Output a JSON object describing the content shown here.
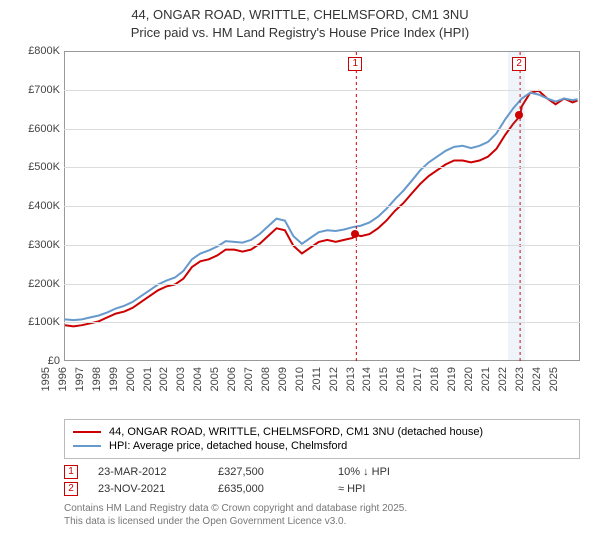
{
  "title_line1": "44, ONGAR ROAD, WRITTLE, CHELMSFORD, CM1 3NU",
  "title_line2": "Price paid vs. HM Land Registry's House Price Index (HPI)",
  "chart": {
    "type": "line",
    "background_color": "#ffffff",
    "grid_color": "#dcdcdc",
    "x": {
      "min": 1995,
      "max": 2025.5,
      "ticks": [
        1995,
        1996,
        1997,
        1998,
        1999,
        2000,
        2001,
        2002,
        2003,
        2004,
        2005,
        2006,
        2007,
        2008,
        2009,
        2010,
        2011,
        2012,
        2013,
        2014,
        2015,
        2016,
        2017,
        2018,
        2019,
        2020,
        2021,
        2022,
        2023,
        2024,
        2025
      ],
      "label_fontsize": 11
    },
    "y": {
      "min": 0,
      "max": 800000,
      "ticks": [
        0,
        100000,
        200000,
        300000,
        400000,
        500000,
        600000,
        700000,
        800000
      ],
      "tick_labels": [
        "£0",
        "£100K",
        "£200K",
        "£300K",
        "£400K",
        "£500K",
        "£600K",
        "£700K",
        "£800K"
      ],
      "label_fontsize": 11
    },
    "shaded_bands_x": [
      [
        2021.2,
        2022.2
      ]
    ],
    "series": [
      {
        "name": "property",
        "legend": "44, ONGAR ROAD, WRITTLE, CHELMSFORD, CM1 3NU (detached house)",
        "color": "#cc0000",
        "line_width": 2,
        "points": [
          [
            1995.0,
            95000
          ],
          [
            1995.5,
            92000
          ],
          [
            1996.0,
            95000
          ],
          [
            1996.5,
            100000
          ],
          [
            1997.0,
            105000
          ],
          [
            1997.5,
            115000
          ],
          [
            1998.0,
            125000
          ],
          [
            1998.5,
            130000
          ],
          [
            1999.0,
            140000
          ],
          [
            1999.5,
            155000
          ],
          [
            2000.0,
            170000
          ],
          [
            2000.5,
            185000
          ],
          [
            2001.0,
            195000
          ],
          [
            2001.5,
            200000
          ],
          [
            2002.0,
            215000
          ],
          [
            2002.5,
            245000
          ],
          [
            2003.0,
            260000
          ],
          [
            2003.5,
            265000
          ],
          [
            2004.0,
            275000
          ],
          [
            2004.5,
            290000
          ],
          [
            2005.0,
            290000
          ],
          [
            2005.5,
            285000
          ],
          [
            2006.0,
            290000
          ],
          [
            2006.5,
            305000
          ],
          [
            2007.0,
            325000
          ],
          [
            2007.5,
            345000
          ],
          [
            2008.0,
            340000
          ],
          [
            2008.5,
            300000
          ],
          [
            2009.0,
            280000
          ],
          [
            2009.5,
            295000
          ],
          [
            2010.0,
            310000
          ],
          [
            2010.5,
            315000
          ],
          [
            2011.0,
            310000
          ],
          [
            2011.5,
            315000
          ],
          [
            2012.0,
            320000
          ],
          [
            2012.22,
            327500
          ],
          [
            2012.5,
            325000
          ],
          [
            2013.0,
            330000
          ],
          [
            2013.5,
            345000
          ],
          [
            2014.0,
            365000
          ],
          [
            2014.5,
            390000
          ],
          [
            2015.0,
            410000
          ],
          [
            2015.5,
            435000
          ],
          [
            2016.0,
            460000
          ],
          [
            2016.5,
            480000
          ],
          [
            2017.0,
            495000
          ],
          [
            2017.5,
            510000
          ],
          [
            2018.0,
            520000
          ],
          [
            2018.5,
            520000
          ],
          [
            2019.0,
            515000
          ],
          [
            2019.5,
            520000
          ],
          [
            2020.0,
            530000
          ],
          [
            2020.5,
            550000
          ],
          [
            2021.0,
            585000
          ],
          [
            2021.5,
            615000
          ],
          [
            2021.9,
            635000
          ],
          [
            2022.0,
            660000
          ],
          [
            2022.5,
            695000
          ],
          [
            2023.0,
            700000
          ],
          [
            2023.5,
            680000
          ],
          [
            2024.0,
            665000
          ],
          [
            2024.5,
            680000
          ],
          [
            2025.0,
            670000
          ],
          [
            2025.3,
            675000
          ]
        ]
      },
      {
        "name": "hpi",
        "legend": "HPI: Average price, detached house, Chelmsford",
        "color": "#6699cc",
        "line_width": 2,
        "points": [
          [
            1995.0,
            110000
          ],
          [
            1995.5,
            108000
          ],
          [
            1996.0,
            110000
          ],
          [
            1996.5,
            115000
          ],
          [
            1997.0,
            120000
          ],
          [
            1997.5,
            128000
          ],
          [
            1998.0,
            138000
          ],
          [
            1998.5,
            145000
          ],
          [
            1999.0,
            155000
          ],
          [
            1999.5,
            170000
          ],
          [
            2000.0,
            185000
          ],
          [
            2000.5,
            200000
          ],
          [
            2001.0,
            210000
          ],
          [
            2001.5,
            218000
          ],
          [
            2002.0,
            235000
          ],
          [
            2002.5,
            265000
          ],
          [
            2003.0,
            280000
          ],
          [
            2003.5,
            288000
          ],
          [
            2004.0,
            298000
          ],
          [
            2004.5,
            312000
          ],
          [
            2005.0,
            310000
          ],
          [
            2005.5,
            308000
          ],
          [
            2006.0,
            315000
          ],
          [
            2006.5,
            330000
          ],
          [
            2007.0,
            350000
          ],
          [
            2007.5,
            370000
          ],
          [
            2008.0,
            365000
          ],
          [
            2008.5,
            325000
          ],
          [
            2009.0,
            305000
          ],
          [
            2009.5,
            320000
          ],
          [
            2010.0,
            335000
          ],
          [
            2010.5,
            340000
          ],
          [
            2011.0,
            338000
          ],
          [
            2011.5,
            342000
          ],
          [
            2012.0,
            348000
          ],
          [
            2012.5,
            352000
          ],
          [
            2013.0,
            360000
          ],
          [
            2013.5,
            375000
          ],
          [
            2014.0,
            395000
          ],
          [
            2014.5,
            420000
          ],
          [
            2015.0,
            442000
          ],
          [
            2015.5,
            468000
          ],
          [
            2016.0,
            495000
          ],
          [
            2016.5,
            515000
          ],
          [
            2017.0,
            530000
          ],
          [
            2017.5,
            545000
          ],
          [
            2018.0,
            555000
          ],
          [
            2018.5,
            558000
          ],
          [
            2019.0,
            552000
          ],
          [
            2019.5,
            558000
          ],
          [
            2020.0,
            568000
          ],
          [
            2020.5,
            590000
          ],
          [
            2021.0,
            625000
          ],
          [
            2021.5,
            655000
          ],
          [
            2022.0,
            680000
          ],
          [
            2022.5,
            695000
          ],
          [
            2023.0,
            690000
          ],
          [
            2023.5,
            680000
          ],
          [
            2024.0,
            672000
          ],
          [
            2024.5,
            680000
          ],
          [
            2025.0,
            676000
          ],
          [
            2025.3,
            678000
          ]
        ]
      }
    ],
    "sale_markers": [
      {
        "id": "1",
        "x": 2012.22,
        "y": 327500,
        "color": "#cc0000"
      },
      {
        "id": "2",
        "x": 2021.9,
        "y": 635000,
        "color": "#cc0000"
      }
    ]
  },
  "sales": [
    {
      "id": "1",
      "date": "23-MAR-2012",
      "price": "£327,500",
      "delta": "10% ↓ HPI"
    },
    {
      "id": "2",
      "date": "23-NOV-2021",
      "price": "£635,000",
      "delta": "≈ HPI"
    }
  ],
  "footer_line1": "Contains HM Land Registry data © Crown copyright and database right 2025.",
  "footer_line2": "This data is licensed under the Open Government Licence v3.0."
}
